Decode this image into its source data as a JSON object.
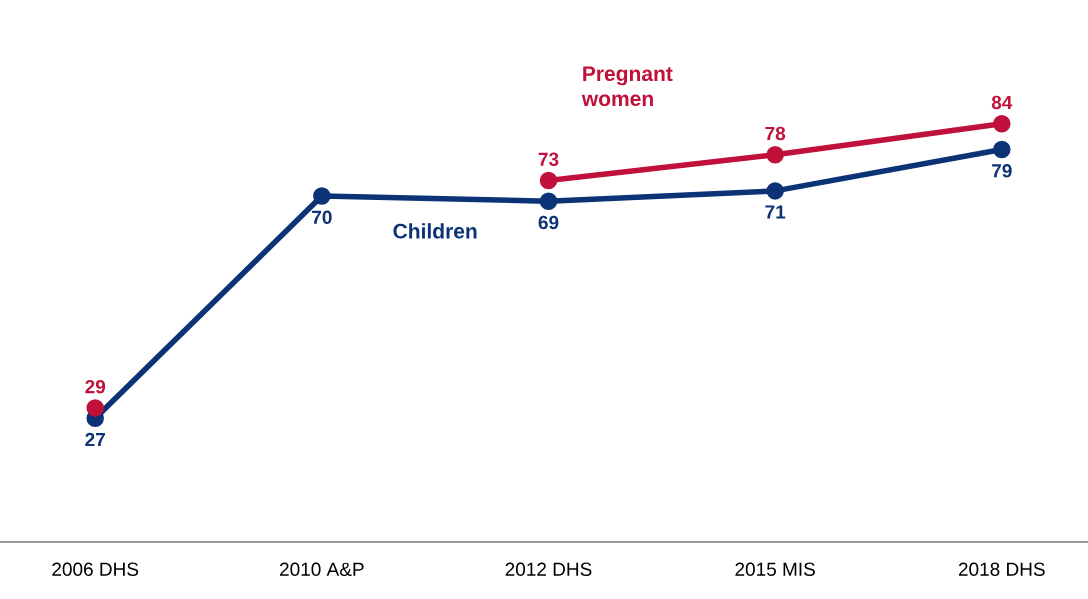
{
  "chart_data": {
    "type": "line",
    "categories": [
      "2006 DHS",
      "2010 A&P",
      "2012 DHS",
      "2015 MIS",
      "2018 DHS"
    ],
    "series": [
      {
        "name": "Children",
        "color": "#0b3375",
        "values": [
          27,
          70,
          69,
          71,
          79
        ]
      },
      {
        "name": "Pregnant women",
        "color": "#c0113a",
        "values": [
          29,
          null,
          73,
          78,
          84
        ]
      }
    ],
    "data_labels": true,
    "marker": "circle",
    "legend": false
  }
}
